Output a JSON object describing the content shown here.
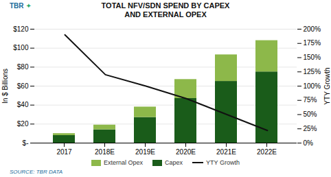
{
  "chart_data": {
    "type": "bar",
    "title": "TOTAL NFV/SDN SPEND BY CAPEX",
    "subtitle": "AND EXTERNAL OPEX",
    "categories": [
      "2017",
      "2018E",
      "2019E",
      "2020E",
      "2021E",
      "2022E"
    ],
    "series": [
      {
        "name": "Capex",
        "color": "#1a5c1a",
        "values": [
          8,
          14,
          27,
          47,
          65,
          75
        ]
      },
      {
        "name": "External Opex",
        "color": "#8db84a",
        "values": [
          2,
          5,
          11,
          20,
          28,
          33
        ]
      },
      {
        "name": "YTY Growth",
        "type": "line",
        "axis": "y2",
        "color": "#111111",
        "values": [
          190,
          120,
          100,
          78,
          50,
          22
        ]
      }
    ],
    "stacked": true,
    "ylabel": "In $ Billions",
    "y2label": "YTY Growth",
    "ylim": [
      0,
      120
    ],
    "yticks": [
      {
        "value": 0,
        "label": "$-"
      },
      {
        "value": 20,
        "label": "$20"
      },
      {
        "value": 40,
        "label": "$40"
      },
      {
        "value": 60,
        "label": "$60"
      },
      {
        "value": 80,
        "label": "$80"
      },
      {
        "value": 100,
        "label": "$100"
      },
      {
        "value": 120,
        "label": "$120"
      }
    ],
    "y2lim": [
      0,
      200
    ],
    "y2ticks": [
      {
        "value": 0,
        "label": "0%"
      },
      {
        "value": 25,
        "label": "25%"
      },
      {
        "value": 50,
        "label": "50%"
      },
      {
        "value": 75,
        "label": "75%"
      },
      {
        "value": 100,
        "label": "100%"
      },
      {
        "value": 125,
        "label": "125%"
      },
      {
        "value": 150,
        "label": "150%"
      },
      {
        "value": 175,
        "label": "175%"
      },
      {
        "value": 200,
        "label": "200%"
      }
    ],
    "grid": true,
    "legend": "bottom",
    "annotations": [
      {
        "text": "TBR",
        "color": "#1a6b9a"
      },
      {
        "text": "✦",
        "color": "#2aaa6a"
      },
      {
        "text": "SOURCE: TBR DATA",
        "color": "#1a6b9a"
      }
    ]
  }
}
